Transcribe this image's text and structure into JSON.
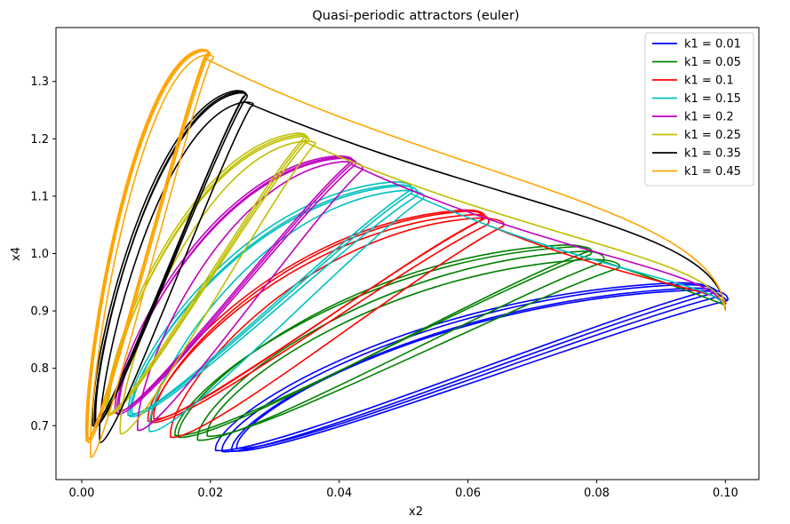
{
  "chart_data": {
    "type": "line",
    "title": "Quasi-periodic attractors (euler)",
    "xlabel": "x2",
    "ylabel": "x4",
    "xlim": [
      -0.004,
      0.1052
    ],
    "ylim": [
      0.606,
      1.394
    ],
    "x_ticks": [
      "0.00",
      "0.02",
      "0.04",
      "0.06",
      "0.08",
      "0.10"
    ],
    "x_tick_values": [
      0.0,
      0.02,
      0.04,
      0.06,
      0.08,
      0.1
    ],
    "y_ticks": [
      "0.7",
      "0.8",
      "0.9",
      "1.0",
      "1.1",
      "1.2",
      "1.3"
    ],
    "y_tick_values": [
      0.7,
      0.8,
      0.9,
      1.0,
      1.1,
      1.2,
      1.3
    ],
    "grid": false,
    "legend_position": "top-right",
    "series": [
      {
        "name": "k1 = 0.01",
        "color": "#0000ff",
        "loops": [
          [
            0.0218,
            0.655,
            0.0935,
            0.946,
            0.0985,
            0.932
          ],
          [
            0.0233,
            0.656,
            0.095,
            0.94,
            0.1003,
            0.918
          ],
          [
            0.0208,
            0.657,
            0.0925,
            0.949,
            0.0978,
            0.937
          ],
          [
            0.0241,
            0.661,
            0.0945,
            0.936,
            0.099,
            0.925
          ]
        ]
      },
      {
        "name": "k1 = 0.05",
        "color": "#008000",
        "loops": [
          [
            0.0145,
            0.683,
            0.077,
            1.012,
            0.079,
            0.998
          ],
          [
            0.018,
            0.675,
            0.078,
            1.004,
            0.081,
            0.985
          ],
          [
            0.015,
            0.68,
            0.075,
            1.015,
            0.0785,
            1.003
          ],
          [
            0.0195,
            0.682,
            0.079,
            0.99,
            0.0835,
            0.975
          ]
        ]
      },
      {
        "name": "k1 = 0.1",
        "color": "#ff0000",
        "loops": [
          [
            0.0103,
            0.708,
            0.0595,
            1.076,
            0.0625,
            1.06
          ],
          [
            0.0108,
            0.706,
            0.061,
            1.068,
            0.063,
            1.05
          ],
          [
            0.0138,
            0.68,
            0.0615,
            1.062,
            0.0655,
            1.048
          ],
          [
            0.0112,
            0.712,
            0.06,
            1.074,
            0.062,
            1.058
          ]
        ]
      },
      {
        "name": "k1 = 0.15",
        "color": "#00bfbf",
        "loops": [
          [
            0.0072,
            0.718,
            0.0485,
            1.125,
            0.051,
            1.11
          ],
          [
            0.0075,
            0.716,
            0.0495,
            1.118,
            0.052,
            1.1
          ],
          [
            0.0105,
            0.69,
            0.05,
            1.11,
            0.053,
            1.095
          ],
          [
            0.0078,
            0.721,
            0.049,
            1.12,
            0.0512,
            1.105
          ]
        ]
      },
      {
        "name": "k1 = 0.2",
        "color": "#bf00bf",
        "loops": [
          [
            0.0052,
            0.722,
            0.0395,
            1.17,
            0.0418,
            1.16
          ],
          [
            0.0055,
            0.72,
            0.04,
            1.166,
            0.0424,
            1.154
          ],
          [
            0.0087,
            0.692,
            0.0405,
            1.16,
            0.0435,
            1.145
          ],
          [
            0.0058,
            0.726,
            0.0398,
            1.168,
            0.042,
            1.157
          ]
        ]
      },
      {
        "name": "k1 = 0.25",
        "color": "#bfbf00",
        "loops": [
          [
            0.0038,
            0.72,
            0.0335,
            1.21,
            0.0342,
            1.198
          ],
          [
            0.004,
            0.718,
            0.034,
            1.204,
            0.0348,
            1.193
          ],
          [
            0.006,
            0.686,
            0.0345,
            1.196,
            0.036,
            1.188
          ],
          [
            0.0042,
            0.722,
            0.0338,
            1.207,
            0.0345,
            1.196
          ]
        ]
      },
      {
        "name": "k1 = 0.35",
        "color": "#000000",
        "loops": [
          [
            0.0017,
            0.7,
            0.024,
            1.284,
            0.025,
            1.27
          ],
          [
            0.002,
            0.698,
            0.0245,
            1.28,
            0.0252,
            1.265
          ],
          [
            0.0028,
            0.671,
            0.0253,
            1.264,
            0.0262,
            1.255
          ],
          [
            0.0022,
            0.703,
            0.0243,
            1.282,
            0.025,
            1.272
          ]
        ]
      },
      {
        "name": "k1 = 0.45",
        "color": "#ffa500",
        "loops": [
          [
            0.0007,
            0.673,
            0.0185,
            1.356,
            0.0191,
            1.344
          ],
          [
            0.001,
            0.671,
            0.0188,
            1.353,
            0.0194,
            1.34
          ],
          [
            0.0014,
            0.645,
            0.0192,
            1.346,
            0.02,
            1.335
          ],
          [
            0.0009,
            0.676,
            0.0186,
            1.354,
            0.0192,
            1.342
          ]
        ]
      }
    ],
    "return_arcs": [
      {
        "series": 0,
        "points": [
          [
            0.0975,
            0.935
          ],
          [
            0.099,
            0.93
          ],
          [
            0.1002,
            0.919
          ]
        ]
      },
      {
        "series": 1,
        "points": [
          [
            0.08,
            0.99
          ],
          [
            0.092,
            0.945
          ],
          [
            0.1,
            0.91
          ]
        ]
      },
      {
        "series": 2,
        "points": [
          [
            0.063,
            1.05
          ],
          [
            0.085,
            0.948
          ],
          [
            0.099,
            0.938
          ],
          [
            0.1001,
            0.912
          ]
        ]
      },
      {
        "series": 3,
        "points": [
          [
            0.051,
            1.105
          ],
          [
            0.078,
            0.968
          ],
          [
            0.0995,
            0.95
          ],
          [
            0.1,
            0.905
          ]
        ]
      },
      {
        "series": 4,
        "points": [
          [
            0.042,
            1.155
          ],
          [
            0.073,
            0.992
          ],
          [
            0.099,
            0.975
          ],
          [
            0.1,
            0.903
          ]
        ]
      },
      {
        "series": 5,
        "points": [
          [
            0.0345,
            1.195
          ],
          [
            0.07,
            1.02
          ],
          [
            0.0985,
            0.995
          ],
          [
            0.1,
            0.902
          ]
        ]
      },
      {
        "series": 6,
        "points": [
          [
            0.0252,
            1.265
          ],
          [
            0.065,
            1.075
          ],
          [
            0.099,
            1.05
          ],
          [
            0.1,
            0.902
          ]
        ]
      },
      {
        "series": 7,
        "points": [
          [
            0.0192,
            1.34
          ],
          [
            0.056,
            1.132
          ],
          [
            0.099,
            1.08
          ],
          [
            0.1,
            0.9
          ]
        ]
      }
    ]
  }
}
